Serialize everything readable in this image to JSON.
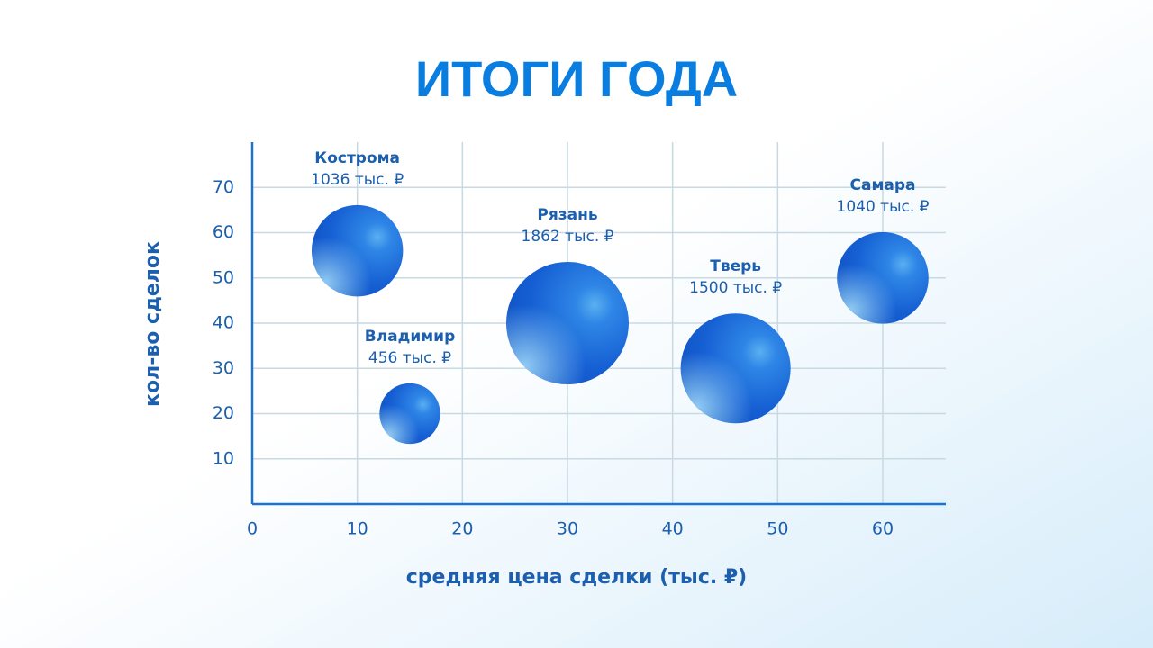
{
  "chart_data": {
    "type": "bubble",
    "title": "ИТОГИ ГОДА",
    "xlabel": "средняя цена сделки (тыс. ₽)",
    "ylabel": "кол-во сделок",
    "labels": [
      "Кострома",
      "Владимир",
      "Рязань",
      "Тверь",
      "Самара"
    ],
    "x": [
      10,
      15,
      30,
      46,
      60
    ],
    "values": [
      56,
      20,
      40,
      30,
      50
    ],
    "sizes": [
      1036,
      456,
      1862,
      1500,
      1040
    ],
    "size_labels": [
      "1036 тыс. ₽",
      "456 тыс. ₽",
      "1862 тыс. ₽",
      "1500 тыс. ₽",
      "1040 тыс. ₽"
    ],
    "color": "#1565d8",
    "xlim": [
      0,
      66
    ],
    "xticks": [
      0,
      10,
      20,
      30,
      40,
      50,
      60
    ],
    "ylim": [
      0,
      80
    ],
    "yticks": [
      10,
      20,
      30,
      40,
      50,
      60,
      70
    ],
    "grid": true
  }
}
